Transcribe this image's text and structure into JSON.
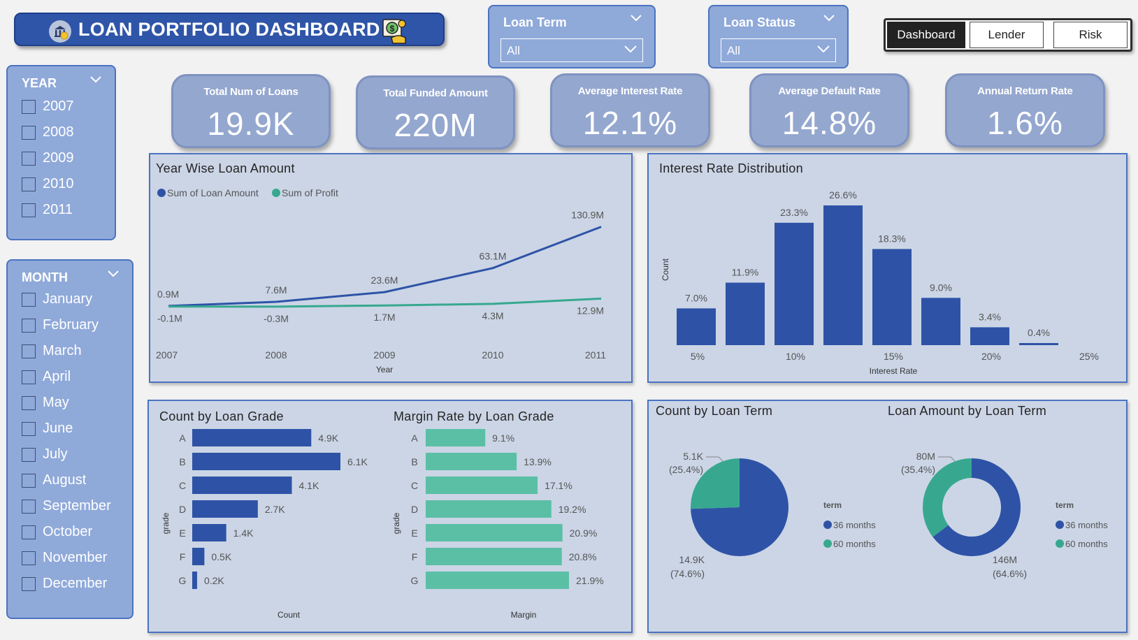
{
  "header": {
    "title": "LOAN PORTFOLIO DASHBOARD",
    "left_icon": "bank-coin-icon",
    "right_icon": "money-hand-icon"
  },
  "filters": {
    "loan_term": {
      "label": "Loan Term",
      "value": "All"
    },
    "loan_status": {
      "label": "Loan Status",
      "value": "All"
    }
  },
  "nav": {
    "dashboard": "Dashboard",
    "lender": "Lender",
    "risk": "Risk",
    "active": "Dashboard"
  },
  "kpis": [
    {
      "label": "Total Num of Loans",
      "value": "19.9K"
    },
    {
      "label": "Total Funded Amount",
      "value": "220M"
    },
    {
      "label": "Average Interest Rate",
      "value": "12.1%"
    },
    {
      "label": "Average Default Rate",
      "value": "14.8%"
    },
    {
      "label": "Annual Return Rate",
      "value": "1.6%"
    }
  ],
  "year_slicer": {
    "label": "YEAR",
    "items": [
      "2007",
      "2008",
      "2009",
      "2010",
      "2011"
    ]
  },
  "month_slicer": {
    "label": "MONTH",
    "items": [
      "January",
      "February",
      "March",
      "April",
      "May",
      "June",
      "July",
      "August",
      "September",
      "October",
      "November",
      "December"
    ]
  },
  "colors": {
    "blue": "#2e53a6",
    "teal": "#37a88f",
    "teal_light": "#5bbfa6",
    "panel": "#cbd5e6",
    "header": "#2f55a8"
  },
  "chart_data": [
    {
      "type": "line",
      "title": "Year Wise Loan Amount",
      "xlabel": "Year",
      "x": [
        "2007",
        "2008",
        "2009",
        "2010",
        "2011"
      ],
      "series": [
        {
          "name": "Sum of Loan Amount",
          "values": [
            0.9,
            7.6,
            23.6,
            63.1,
            130.9
          ],
          "labels": [
            "0.9M",
            "7.6M",
            "23.6M",
            "63.1M",
            "130.9M"
          ]
        },
        {
          "name": "Sum of Profit",
          "values": [
            -0.1,
            -0.3,
            1.7,
            4.3,
            12.9
          ],
          "labels": [
            "-0.1M",
            "-0.3M",
            "1.7M",
            "4.3M",
            "12.9M"
          ]
        }
      ],
      "legend": "top-left"
    },
    {
      "type": "bar",
      "title": "Interest Rate Distribution",
      "xlabel": "Interest Rate",
      "ylabel": "Count",
      "x_ticks": [
        "5%",
        "10%",
        "15%",
        "20%",
        "25%"
      ],
      "values": [
        7.0,
        11.9,
        23.3,
        26.6,
        18.3,
        9.0,
        3.4,
        0.4
      ],
      "labels": [
        "7.0%",
        "11.9%",
        "23.3%",
        "26.6%",
        "18.3%",
        "9.0%",
        "3.4%",
        "0.4%"
      ]
    },
    {
      "type": "bar",
      "title": "Count by Loan Grade",
      "xlabel": "Count",
      "ylabel": "grade",
      "categories": [
        "A",
        "B",
        "C",
        "D",
        "E",
        "F",
        "G"
      ],
      "values": [
        4.9,
        6.1,
        4.1,
        2.7,
        1.4,
        0.5,
        0.2
      ],
      "labels": [
        "4.9K",
        "6.1K",
        "4.1K",
        "2.7K",
        "1.4K",
        "0.5K",
        "0.2K"
      ]
    },
    {
      "type": "bar",
      "title": "Margin Rate by Loan Grade",
      "xlabel": "Margin",
      "ylabel": "grade",
      "categories": [
        "A",
        "B",
        "C",
        "D",
        "E",
        "F",
        "G"
      ],
      "values": [
        9.1,
        13.9,
        17.1,
        19.2,
        20.9,
        20.8,
        21.9
      ],
      "labels": [
        "9.1%",
        "13.9%",
        "17.1%",
        "19.2%",
        "20.9%",
        "20.8%",
        "21.9%"
      ]
    },
    {
      "type": "pie",
      "title": "Count by Loan Term",
      "legend_title": "term",
      "categories": [
        "36 months",
        "60 months"
      ],
      "values": [
        14.9,
        5.1
      ],
      "labels": [
        "14.9K",
        "5.1K"
      ],
      "percents": [
        "(74.6%)",
        "(25.4%)"
      ]
    },
    {
      "type": "pie",
      "title": "Loan Amount by Loan Term",
      "legend_title": "term",
      "categories": [
        "36 months",
        "60 months"
      ],
      "values": [
        146,
        80
      ],
      "labels": [
        "146M",
        "80M"
      ],
      "percents": [
        "(64.6%)",
        "(35.4%)"
      ]
    }
  ]
}
